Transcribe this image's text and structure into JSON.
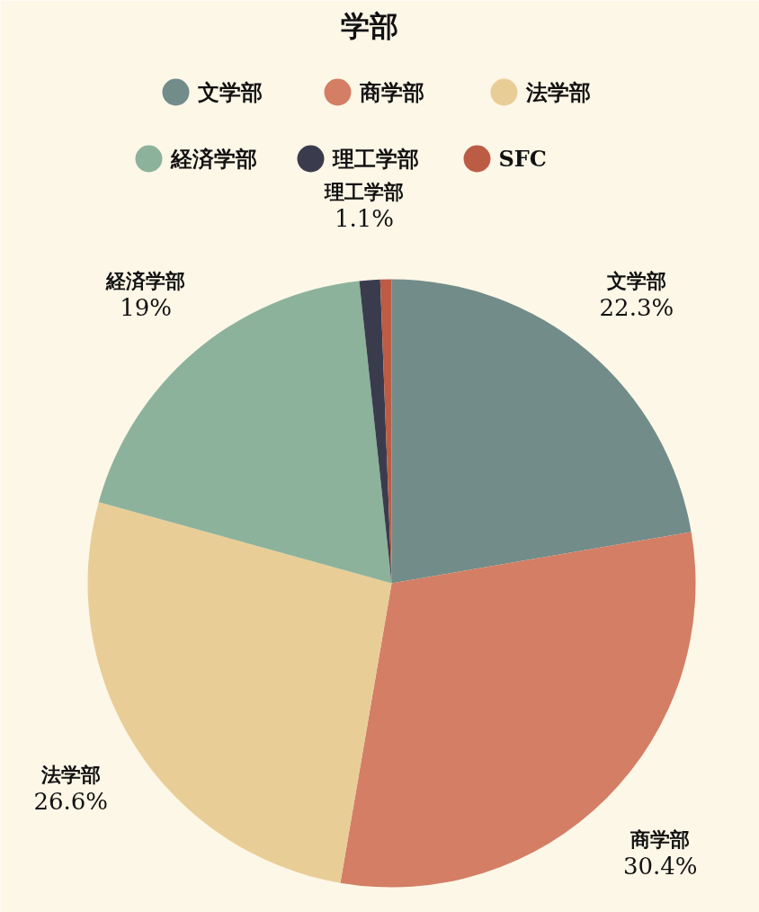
{
  "chart_data": {
    "type": "pie",
    "title": "学部",
    "categories": [
      "文学部",
      "商学部",
      "法学部",
      "経済学部",
      "理工学部",
      "SFC"
    ],
    "values": [
      22.3,
      30.4,
      26.6,
      19,
      1.1,
      0.6
    ],
    "value_labels": [
      "22.3%",
      "30.4%",
      "26.6%",
      "19%",
      "1.1%",
      null
    ],
    "colors": [
      "#728c8a",
      "#d37e65",
      "#e9cd97",
      "#8db29b",
      "#3a3c4e",
      "#bc5c45"
    ],
    "legend": "top"
  }
}
